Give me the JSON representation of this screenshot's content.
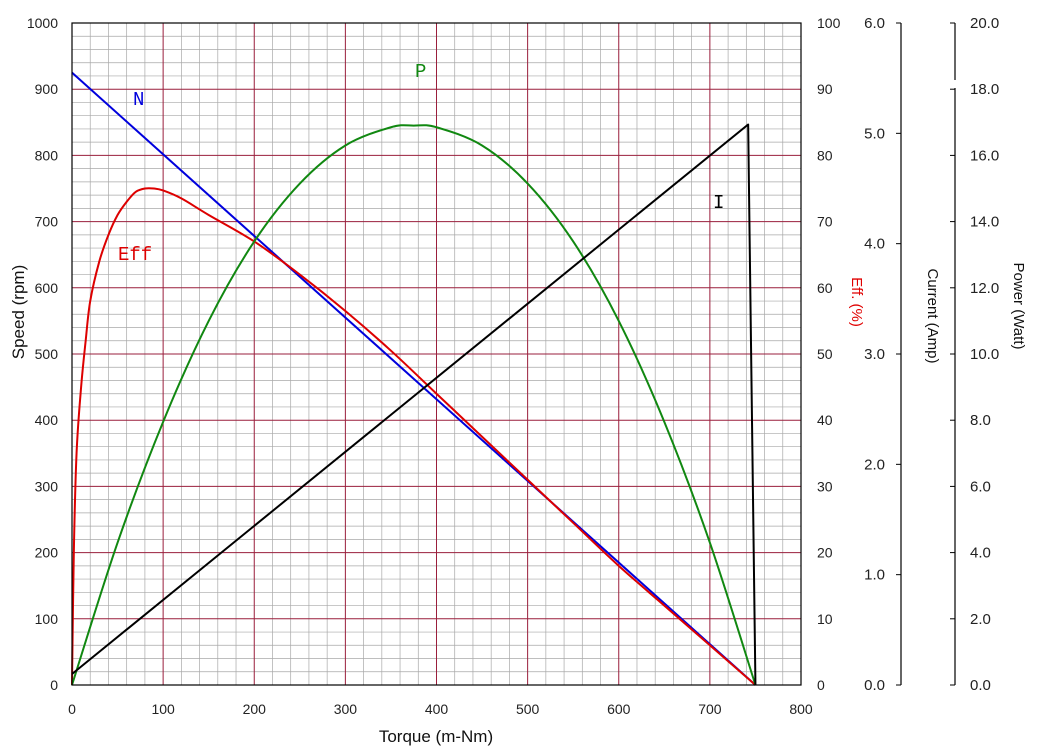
{
  "chart_data": {
    "type": "line",
    "xlabel": "Torque (m-Nm)",
    "xlim": [
      0,
      800
    ],
    "xticks": [
      "0",
      "100",
      "200",
      "300",
      "400",
      "500",
      "600",
      "700",
      "800"
    ],
    "grid": true,
    "axes": {
      "speed": {
        "label": "Speed (rpm)",
        "lim": [
          0,
          1000
        ],
        "ticks": [
          "0",
          "100",
          "200",
          "300",
          "400",
          "500",
          "600",
          "700",
          "800",
          "900",
          "1000"
        ]
      },
      "eff": {
        "label": "Eff. (%)",
        "lim": [
          0,
          100
        ],
        "ticks": [
          "0",
          "10",
          "20",
          "30",
          "40",
          "50",
          "60",
          "70",
          "80",
          "90",
          "100"
        ]
      },
      "current": {
        "label": "Current (Amp)",
        "lim": [
          0,
          6
        ],
        "ticks": [
          "0.0",
          "1.0",
          "2.0",
          "3.0",
          "4.0",
          "5.0",
          "6.0"
        ]
      },
      "power": {
        "label": "Power (Watt)",
        "lim": [
          0,
          20
        ],
        "ticks": [
          "0.0",
          "2.0",
          "4.0",
          "6.0",
          "8.0",
          "10.0",
          "12.0",
          "14.0",
          "16.0",
          "18.0",
          "20.0"
        ]
      }
    },
    "series": [
      {
        "name": "N",
        "axis": "speed",
        "color": "#0000dd",
        "x": [
          0,
          750
        ],
        "y": [
          925,
          0
        ]
      },
      {
        "name": "Eff",
        "axis": "eff",
        "color": "#dd0000",
        "x": [
          0,
          2,
          5,
          10,
          15,
          20,
          30,
          40,
          50,
          60,
          70,
          80,
          90,
          100,
          120,
          150,
          200,
          250,
          300,
          350,
          400,
          450,
          500,
          550,
          600,
          650,
          700,
          750
        ],
        "y": [
          0,
          20,
          35,
          45,
          52,
          58,
          64,
          68,
          71,
          73,
          74.5,
          75,
          75,
          74.7,
          73.5,
          71,
          67,
          62,
          56.5,
          50.5,
          44,
          37.5,
          31,
          24.5,
          18,
          12,
          6,
          0
        ]
      },
      {
        "name": "P",
        "axis": "power",
        "color": "#118811",
        "x": [
          0,
          50,
          100,
          150,
          200,
          250,
          300,
          350,
          375,
          400,
          450,
          500,
          550,
          600,
          650,
          700,
          750
        ],
        "y": [
          0,
          4.3,
          7.95,
          11.0,
          13.4,
          15.15,
          16.3,
          16.85,
          16.9,
          16.85,
          16.3,
          15.15,
          13.4,
          11.0,
          7.95,
          4.3,
          0
        ]
      },
      {
        "name": "I",
        "axis": "current",
        "color": "#000000",
        "x": [
          0,
          742,
          750
        ],
        "y": [
          0.1,
          5.08,
          0
        ]
      }
    ]
  }
}
